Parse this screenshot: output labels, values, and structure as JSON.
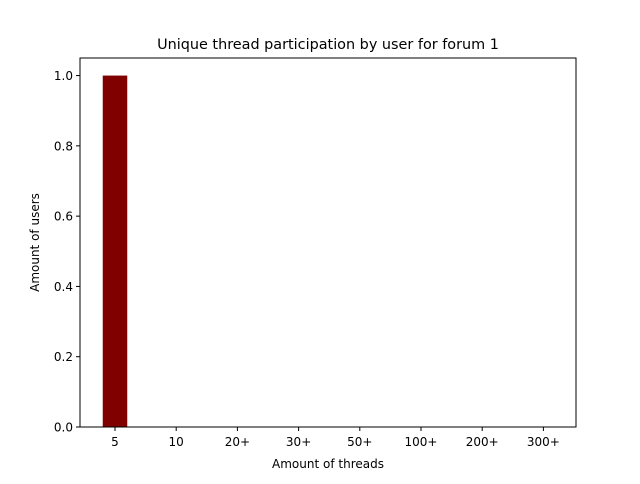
{
  "chart_data": {
    "type": "bar",
    "title": "Unique thread participation by user for forum 1",
    "xlabel": "Amount of threads",
    "ylabel": "Amount of users",
    "categories": [
      "5",
      "10",
      "20+",
      "30+",
      "50+",
      "100+",
      "200+",
      "300+"
    ],
    "values": [
      1,
      0,
      0,
      0,
      0,
      0,
      0,
      0
    ],
    "ylim": [
      0,
      1.05
    ],
    "yticks": [
      "0.0",
      "0.2",
      "0.4",
      "0.6",
      "0.8",
      "1.0"
    ],
    "grid": false,
    "bar_color": "#800000"
  }
}
